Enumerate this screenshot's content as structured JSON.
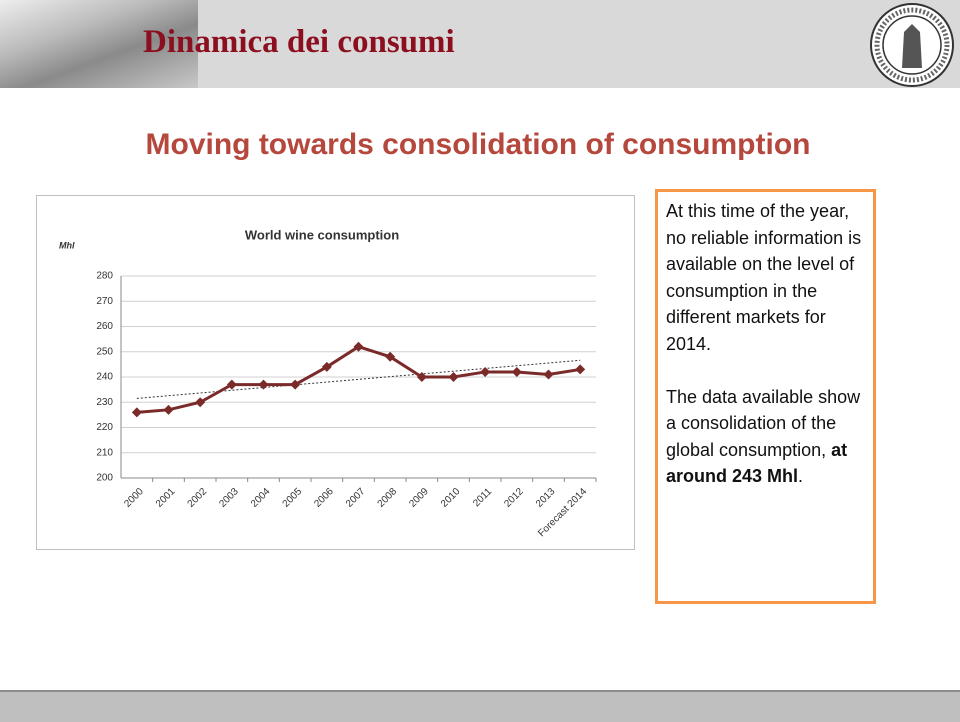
{
  "header": {
    "title": "Dinamica dei consumi"
  },
  "slide_title": "Moving towards consolidation of consumption",
  "chart_data": {
    "type": "line",
    "title": "World wine consumption",
    "y_label": "Mhl",
    "categories": [
      "2000",
      "2001",
      "2002",
      "2003",
      "2004",
      "2005",
      "2006",
      "2007",
      "2008",
      "2009",
      "2010",
      "2011",
      "2012",
      "2013",
      "Forecast 2014"
    ],
    "values": [
      226,
      227,
      230,
      237,
      237,
      237,
      244,
      252,
      248,
      240,
      240,
      242,
      242,
      241,
      243
    ],
    "color": "#7b2a2a",
    "ylim": [
      200,
      280
    ],
    "yticks": [
      200,
      210,
      220,
      230,
      240,
      250,
      260,
      270,
      280
    ],
    "grid": true,
    "trendline": true
  },
  "note": {
    "paragraph_1": "At this time of the year, no reliable information is available on the level of consumption in the different markets for 2014.",
    "paragraph_2": "The data available show a consolidation of the global consumption,",
    "paragraph_2_bold": "at around 243 Mhl",
    "paragraph_2_end": "."
  }
}
